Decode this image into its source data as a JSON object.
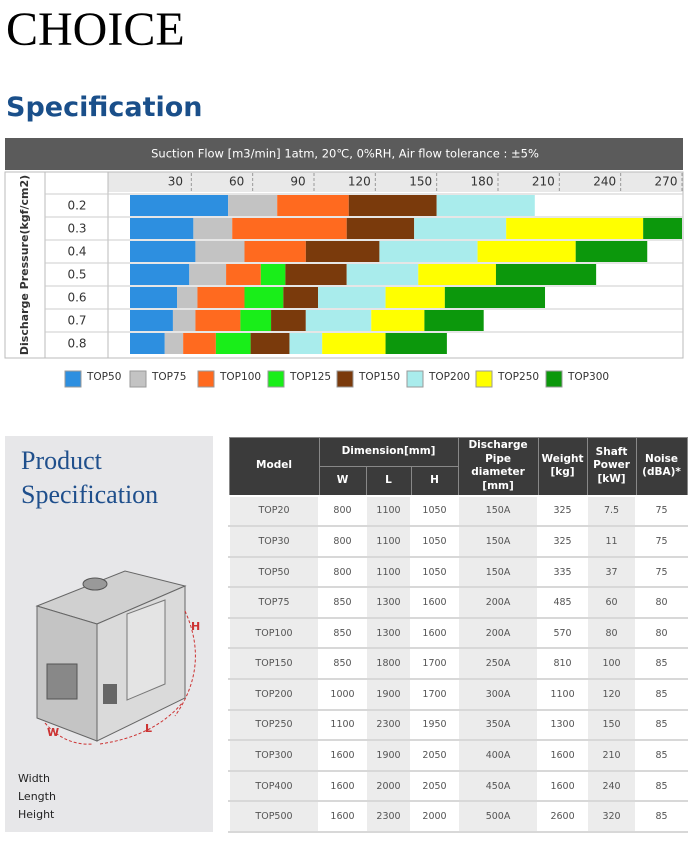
{
  "header": {
    "brand": "CHOICE",
    "section": "Specification"
  },
  "chart_data": {
    "type": "bar",
    "orientation": "horizontal",
    "stacked": true,
    "title": "Suction Flow [m3/min] 1atm, 20℃, 0%RH, Air flow tolerance : ±5%",
    "y_label": "Discharge Pressure(kgf/cm2)",
    "categories": [
      "0.2",
      "0.3",
      "0.4",
      "0.5",
      "0.6",
      "0.7",
      "0.8"
    ],
    "xlim": [
      0,
      270
    ],
    "xticks": [
      30,
      60,
      90,
      120,
      150,
      180,
      210,
      240,
      270
    ],
    "grid": true,
    "series": [
      {
        "name": "TOP50",
        "color": "#2d8fe0",
        "values": [
          48,
          31,
          32,
          29,
          23,
          21,
          17
        ]
      },
      {
        "name": "TOP75",
        "color": "#c3c3c3",
        "values": [
          24,
          19,
          24,
          18,
          10,
          11,
          9
        ]
      },
      {
        "name": "TOP100",
        "color": "#ff6a1f",
        "values": [
          35,
          56,
          30,
          17,
          23,
          22,
          16
        ]
      },
      {
        "name": "TOP125",
        "color": "#19ee19",
        "values": [
          null,
          null,
          null,
          12,
          19,
          15,
          17
        ]
      },
      {
        "name": "TOP150",
        "color": "#7a3a0c",
        "values": [
          43,
          33,
          36,
          30,
          17,
          17,
          19
        ]
      },
      {
        "name": "TOP200",
        "color": "#a9ecec",
        "values": [
          48,
          45,
          48,
          35,
          33,
          32,
          16
        ]
      },
      {
        "name": "TOP250",
        "color": "#ffff00",
        "values": [
          null,
          67,
          48,
          38,
          29,
          26,
          31
        ]
      },
      {
        "name": "TOP300",
        "color": "#0c980c",
        "values": [
          null,
          19,
          35,
          49,
          49,
          29,
          30
        ]
      }
    ]
  },
  "product_panel": {
    "title_line1": "Product",
    "title_line2": "Specification",
    "dim_h": "H",
    "dim_w": "W",
    "dim_l": "L",
    "legend": [
      "Width",
      "Length",
      "Height"
    ]
  },
  "spec_table": {
    "columns": {
      "model": "Model",
      "dimension": "Dimension[mm]",
      "w": "W",
      "l": "L",
      "h": "H",
      "discharge": "Discharge Pipe diameter [mm]",
      "weight": "Weight [kg]",
      "power": "Shaft Power [kW]",
      "noise": "Noise (dBA)*"
    },
    "rows": [
      [
        "TOP20",
        "800",
        "1100",
        "1050",
        "150A",
        "325",
        "7.5",
        "75"
      ],
      [
        "TOP30",
        "800",
        "1100",
        "1050",
        "150A",
        "325",
        "11",
        "75"
      ],
      [
        "TOP50",
        "800",
        "1100",
        "1050",
        "150A",
        "335",
        "37",
        "75"
      ],
      [
        "TOP75",
        "850",
        "1300",
        "1600",
        "200A",
        "485",
        "60",
        "80"
      ],
      [
        "TOP100",
        "850",
        "1300",
        "1600",
        "200A",
        "570",
        "80",
        "80"
      ],
      [
        "TOP150",
        "850",
        "1800",
        "1700",
        "250A",
        "810",
        "100",
        "85"
      ],
      [
        "TOP200",
        "1000",
        "1900",
        "1700",
        "300A",
        "1100",
        "120",
        "85"
      ],
      [
        "TOP250",
        "1100",
        "2300",
        "1950",
        "350A",
        "1300",
        "150",
        "85"
      ],
      [
        "TOP300",
        "1600",
        "1900",
        "2050",
        "400A",
        "1600",
        "210",
        "85"
      ],
      [
        "TOP400",
        "1600",
        "2000",
        "2050",
        "450A",
        "1600",
        "240",
        "85"
      ],
      [
        "TOP500",
        "1600",
        "2300",
        "2000",
        "500A",
        "2600",
        "320",
        "85"
      ]
    ]
  }
}
